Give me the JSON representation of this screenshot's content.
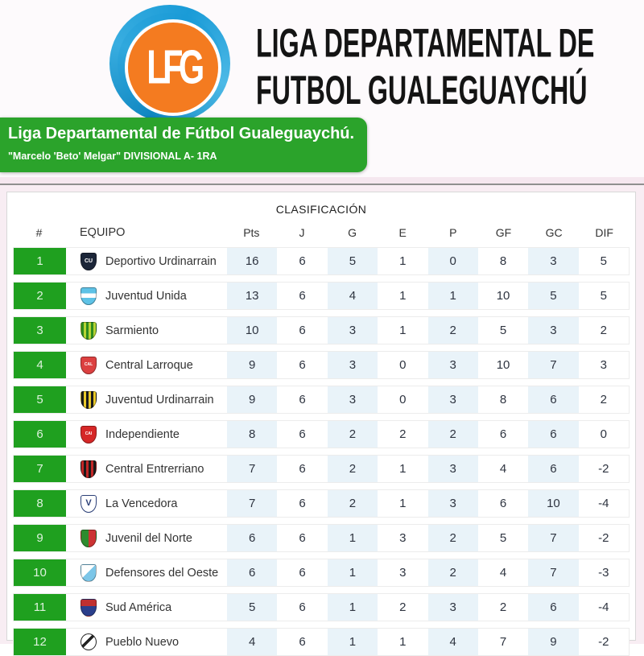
{
  "header": {
    "logo_monogram": "LFG",
    "title_line1": "LIGA DEPARTAMENTAL DE",
    "title_line2": "FUTBOL GUALEGUAYCHÚ",
    "logo_blue": "#1a9bd7",
    "logo_orange": "#f47b20"
  },
  "banner": {
    "title": "Liga Departamental de Fútbol Gualeguaychú.",
    "subtitle": "\"Marcelo 'Beto' Melgar\" DIVISIONAL A- 1RA",
    "green": "#2ba32b"
  },
  "table": {
    "title": "CLASIFICACIÓN",
    "columns": [
      "#",
      "EQUIPO",
      "Pts",
      "J",
      "G",
      "E",
      "P",
      "GF",
      "GC",
      "DIF"
    ],
    "position_green": "#1fa01f",
    "alt_column_blue": "#e9f3f9",
    "rows": [
      {
        "pos": 1,
        "team": "Deportivo Urdinarrain",
        "stats": [
          16,
          6,
          5,
          1,
          0,
          8,
          3,
          5
        ],
        "badge": {
          "pattern": "solid",
          "c1": "#1c2639",
          "c2": "#ffffff",
          "letter": "CU",
          "letter_color": "#ffffff",
          "letter_size": 7
        }
      },
      {
        "pos": 2,
        "team": "Juventud Unida",
        "stats": [
          13,
          6,
          4,
          1,
          1,
          10,
          5,
          5
        ],
        "badge": {
          "pattern": "hband",
          "c1": "#5ec2e6",
          "c2": "#ffffff"
        }
      },
      {
        "pos": 3,
        "team": "Sarmiento",
        "stats": [
          10,
          6,
          3,
          1,
          2,
          5,
          3,
          2
        ],
        "badge": {
          "pattern": "stripes",
          "c1": "#2e8b1e",
          "c2": "#b7d434"
        }
      },
      {
        "pos": 4,
        "team": "Central Larroque",
        "stats": [
          9,
          6,
          3,
          0,
          3,
          10,
          7,
          3
        ],
        "badge": {
          "pattern": "solid",
          "c1": "#dc4040",
          "c2": "#ffffff",
          "letter": "CAL",
          "letter_color": "#ffffff",
          "letter_size": 5
        }
      },
      {
        "pos": 5,
        "team": "Juventud Urdinarrain",
        "stats": [
          9,
          6,
          3,
          0,
          3,
          8,
          6,
          2
        ],
        "badge": {
          "pattern": "stripes",
          "c1": "#1a1a1a",
          "c2": "#e9c929"
        }
      },
      {
        "pos": 6,
        "team": "Independiente",
        "stats": [
          8,
          6,
          2,
          2,
          2,
          6,
          6,
          0
        ],
        "badge": {
          "pattern": "solid",
          "c1": "#d62727",
          "c2": "#ffffff",
          "letter": "CAI",
          "letter_color": "#ffffff",
          "letter_size": 5
        }
      },
      {
        "pos": 7,
        "team": "Central Entrerriano",
        "stats": [
          7,
          6,
          2,
          1,
          3,
          4,
          6,
          -2
        ],
        "badge": {
          "pattern": "stripes",
          "c1": "#c22626",
          "c2": "#1a1a1a"
        }
      },
      {
        "pos": 8,
        "team": "La Vencedora",
        "stats": [
          7,
          6,
          2,
          1,
          3,
          6,
          10,
          -4
        ],
        "badge": {
          "pattern": "solid",
          "c1": "#ffffff",
          "c2": "#2b3f77",
          "letter": "V",
          "letter_color": "#2b3f77",
          "letter_size": 11
        }
      },
      {
        "pos": 9,
        "team": "Juvenil del Norte",
        "stats": [
          6,
          6,
          1,
          3,
          2,
          5,
          7,
          -2
        ],
        "badge": {
          "pattern": "half",
          "c1": "#2e8b2e",
          "c2": "#cc3333"
        }
      },
      {
        "pos": 10,
        "team": "Defensores del Oeste",
        "stats": [
          6,
          6,
          1,
          3,
          2,
          4,
          7,
          -3
        ],
        "badge": {
          "pattern": "diag",
          "c1": "#7cc6e8",
          "c2": "#ffffff"
        }
      },
      {
        "pos": 11,
        "team": "Sud América",
        "stats": [
          5,
          6,
          1,
          2,
          3,
          2,
          6,
          -4
        ],
        "badge": {
          "pattern": "band2",
          "c1": "#c03030",
          "c2": "#2b3f8c"
        }
      },
      {
        "pos": 12,
        "team": "Pueblo Nuevo",
        "stats": [
          4,
          6,
          1,
          1,
          4,
          7,
          9,
          -2
        ],
        "badge": {
          "pattern": "circle-stripe",
          "c1": "#ffffff",
          "c2": "#222222"
        }
      }
    ]
  }
}
